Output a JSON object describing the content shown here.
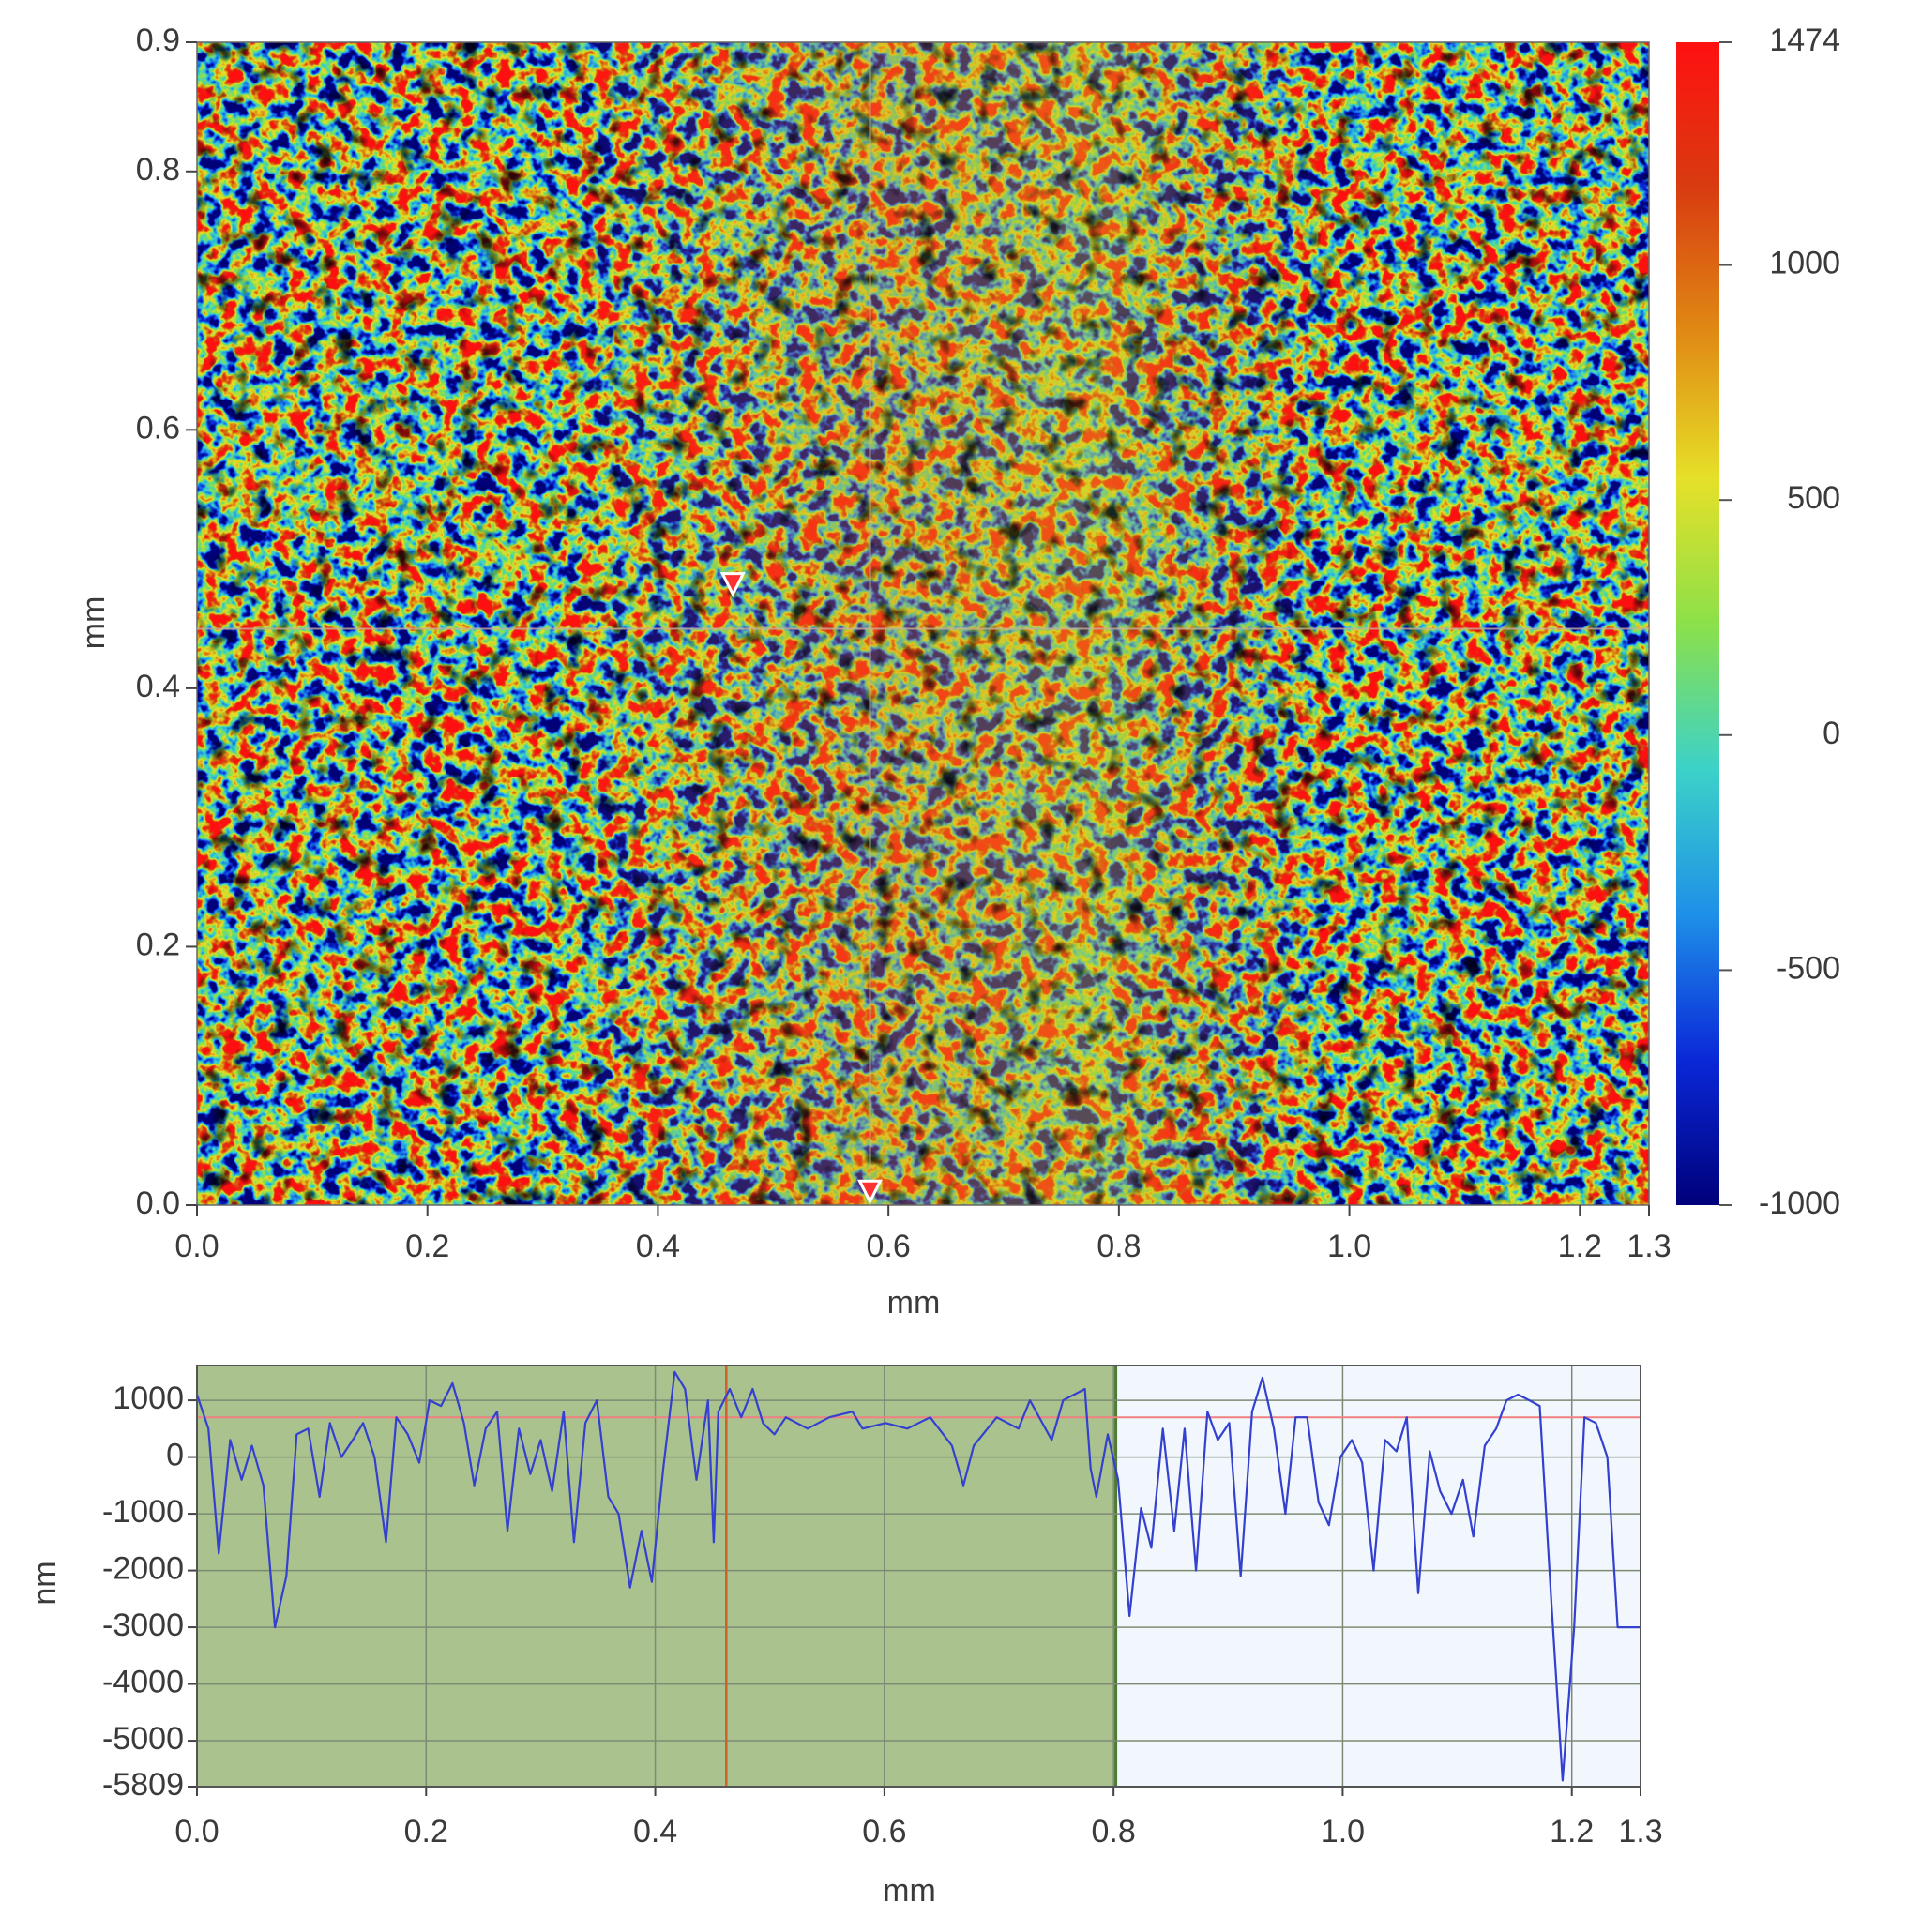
{
  "chart_data": [
    {
      "type": "heatmap",
      "xlabel": "mm",
      "ylabel": "mm",
      "xlim": [
        0,
        1.26
      ],
      "ylim": [
        0,
        0.9
      ],
      "xticks": [
        {
          "value": 0,
          "label": "0.0"
        },
        0.2,
        0.4,
        0.6,
        0.8,
        {
          "value": 1,
          "label": "1.0"
        },
        1.2,
        {
          "value": 1.26,
          "label": "1.3"
        }
      ],
      "yticks": [
        {
          "value": 0,
          "label": "0.0"
        },
        0.2,
        0.4,
        0.6,
        0.8,
        0.9
      ],
      "zlim": [
        -1000,
        1474
      ],
      "zticks": [
        -1000,
        -500,
        0,
        500,
        1000,
        1474
      ],
      "colormap": [
        "#00007a",
        "#0a28d8",
        "#1e90e8",
        "#3cd2c8",
        "#8ce04a",
        "#e6e028",
        "#e08a14",
        "#d83c10",
        "#ff1010"
      ],
      "crosshair": {
        "x": 0.584,
        "y": 0.446
      },
      "markers": [
        {
          "x": 0.465,
          "y": 0.48
        },
        {
          "x": 0.584,
          "y": 0.01
        }
      ]
    },
    {
      "type": "line",
      "xlabel": "mm",
      "ylabel": "nm",
      "xlim": [
        0,
        1.26
      ],
      "ylim": [
        -5809,
        1613
      ],
      "xticks": [
        {
          "value": 0,
          "label": "0.0"
        },
        0.2,
        0.4,
        0.6,
        0.8,
        {
          "value": 1,
          "label": "1.0"
        },
        1.2,
        {
          "value": 1.26,
          "label": "1.3"
        }
      ],
      "yticks": [
        1000,
        0,
        -1000,
        -2000,
        -3000,
        -4000,
        -5000,
        -5809
      ],
      "color": "#3340d0",
      "region": [
        0,
        0.802
      ],
      "region_color": "#aac28e",
      "cursor_x": 0.462,
      "cursor_color": "#d0602c",
      "reference_line": 700,
      "reference_color": "#f08080",
      "grid": true,
      "x": [
        0,
        0.01,
        0.019,
        0.029,
        0.039,
        0.048,
        0.058,
        0.068,
        0.078,
        0.087,
        0.097,
        0.107,
        0.116,
        0.126,
        0.136,
        0.145,
        0.155,
        0.165,
        0.174,
        0.184,
        0.194,
        0.203,
        0.213,
        0.223,
        0.233,
        0.242,
        0.252,
        0.262,
        0.271,
        0.281,
        0.291,
        0.3,
        0.31,
        0.32,
        0.329,
        0.339,
        0.349,
        0.359,
        0.368,
        0.378,
        0.388,
        0.397,
        0.407,
        0.417,
        0.426,
        0.436,
        0.446,
        0.451,
        0.455,
        0.465,
        0.475,
        0.485,
        0.494,
        0.504,
        0.514,
        0.533,
        0.552,
        0.572,
        0.581,
        0.601,
        0.62,
        0.64,
        0.659,
        0.669,
        0.678,
        0.698,
        0.717,
        0.727,
        0.746,
        0.756,
        0.775,
        0.78,
        0.785,
        0.795,
        0.804,
        0.814,
        0.824,
        0.833,
        0.843,
        0.853,
        0.862,
        0.872,
        0.882,
        0.891,
        0.901,
        0.911,
        0.921,
        0.93,
        0.94,
        0.95,
        0.959,
        0.969,
        0.979,
        0.988,
        0.998,
        1.008,
        1.017,
        1.027,
        1.037,
        1.047,
        1.056,
        1.066,
        1.076,
        1.085,
        1.095,
        1.105,
        1.114,
        1.124,
        1.134,
        1.143,
        1.153,
        1.163,
        1.172,
        1.182,
        1.192,
        1.202,
        1.211,
        1.221,
        1.231,
        1.24,
        1.26
      ],
      "values": [
        1100,
        500,
        -1700,
        300,
        -400,
        200,
        -500,
        -3000,
        -2100,
        400,
        500,
        -700,
        600,
        0,
        300,
        600,
        0,
        -1500,
        700,
        400,
        -100,
        1000,
        900,
        1300,
        600,
        -500,
        500,
        800,
        -1300,
        500,
        -300,
        300,
        -600,
        800,
        -1500,
        600,
        1000,
        -700,
        -1000,
        -2300,
        -1300,
        -2200,
        -200,
        1500,
        1200,
        -400,
        1000,
        -1500,
        800,
        1200,
        700,
        1200,
        600,
        400,
        700,
        500,
        700,
        800,
        500,
        600,
        500,
        700,
        200,
        -500,
        200,
        700,
        500,
        1000,
        300,
        1000,
        1200,
        -200,
        -700,
        400,
        -400,
        -2800,
        -900,
        -1600,
        500,
        -1300,
        500,
        -2000,
        800,
        300,
        600,
        -2100,
        800,
        1400,
        500,
        -1000,
        700,
        700,
        -800,
        -1200,
        0,
        300,
        -100,
        -2000,
        300,
        100,
        700,
        -2400,
        100,
        -600,
        -1000,
        -400,
        -1400,
        200,
        500,
        1000,
        1100,
        1000,
        900,
        -2500,
        -5700,
        -3000,
        700,
        600,
        0,
        -3000,
        -3000
      ]
    }
  ]
}
